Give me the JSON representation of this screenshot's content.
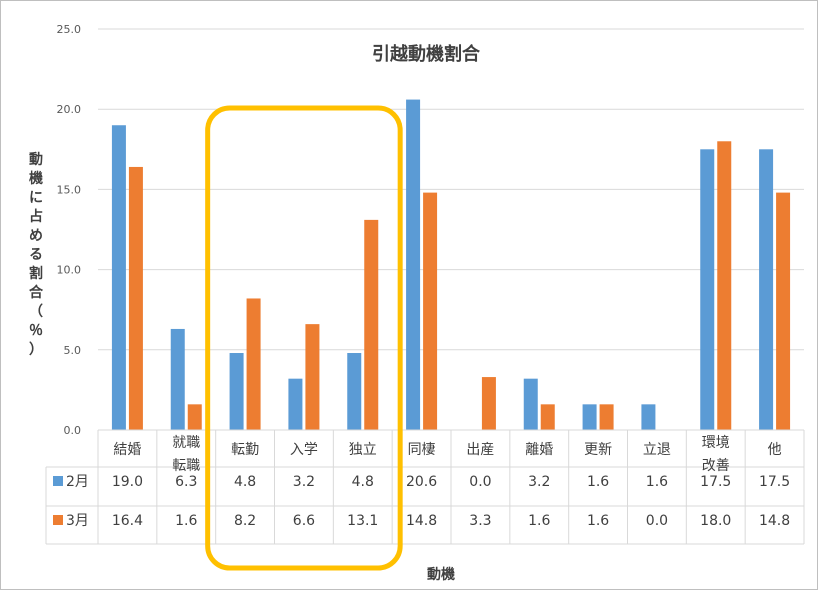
{
  "chart_data": {
    "type": "bar",
    "title": "引越動機割合",
    "xlabel": "動機",
    "ylabel": "動機に占める割合（％）",
    "ylim": [
      0,
      25
    ],
    "yticks": [
      "0.0",
      "5.0",
      "10.0",
      "15.0",
      "20.0",
      "25.0"
    ],
    "grid": true,
    "legend": "table",
    "categories": [
      [
        "結婚"
      ],
      [
        "就職",
        "転職"
      ],
      [
        "転勤"
      ],
      [
        "入学"
      ],
      [
        "独立"
      ],
      [
        "同棲"
      ],
      [
        "出産"
      ],
      [
        "離婚"
      ],
      [
        "更新"
      ],
      [
        "立退"
      ],
      [
        "環境",
        "改善"
      ],
      [
        "他"
      ]
    ],
    "series": [
      {
        "name": "2月",
        "color": "#5b9bd5",
        "values": [
          19.0,
          6.3,
          4.8,
          3.2,
          4.8,
          20.6,
          0.0,
          3.2,
          1.6,
          1.6,
          17.5,
          17.5
        ],
        "labels": [
          "19.0",
          "6.3",
          "4.8",
          "3.2",
          "4.8",
          "20.6",
          "0.0",
          "3.2",
          "1.6",
          "1.6",
          "17.5",
          "17.5"
        ]
      },
      {
        "name": "3月",
        "color": "#ed7d31",
        "values": [
          16.4,
          1.6,
          8.2,
          6.6,
          13.1,
          14.8,
          3.3,
          1.6,
          1.6,
          0.0,
          18.0,
          14.8
        ],
        "labels": [
          "16.4",
          "1.6",
          "8.2",
          "6.6",
          "13.1",
          "14.8",
          "3.3",
          "1.6",
          "1.6",
          "0.0",
          "18.0",
          "14.8"
        ]
      }
    ],
    "highlight": {
      "categories": [
        "転勤",
        "入学",
        "独立"
      ],
      "color": "#ffc000"
    }
  }
}
